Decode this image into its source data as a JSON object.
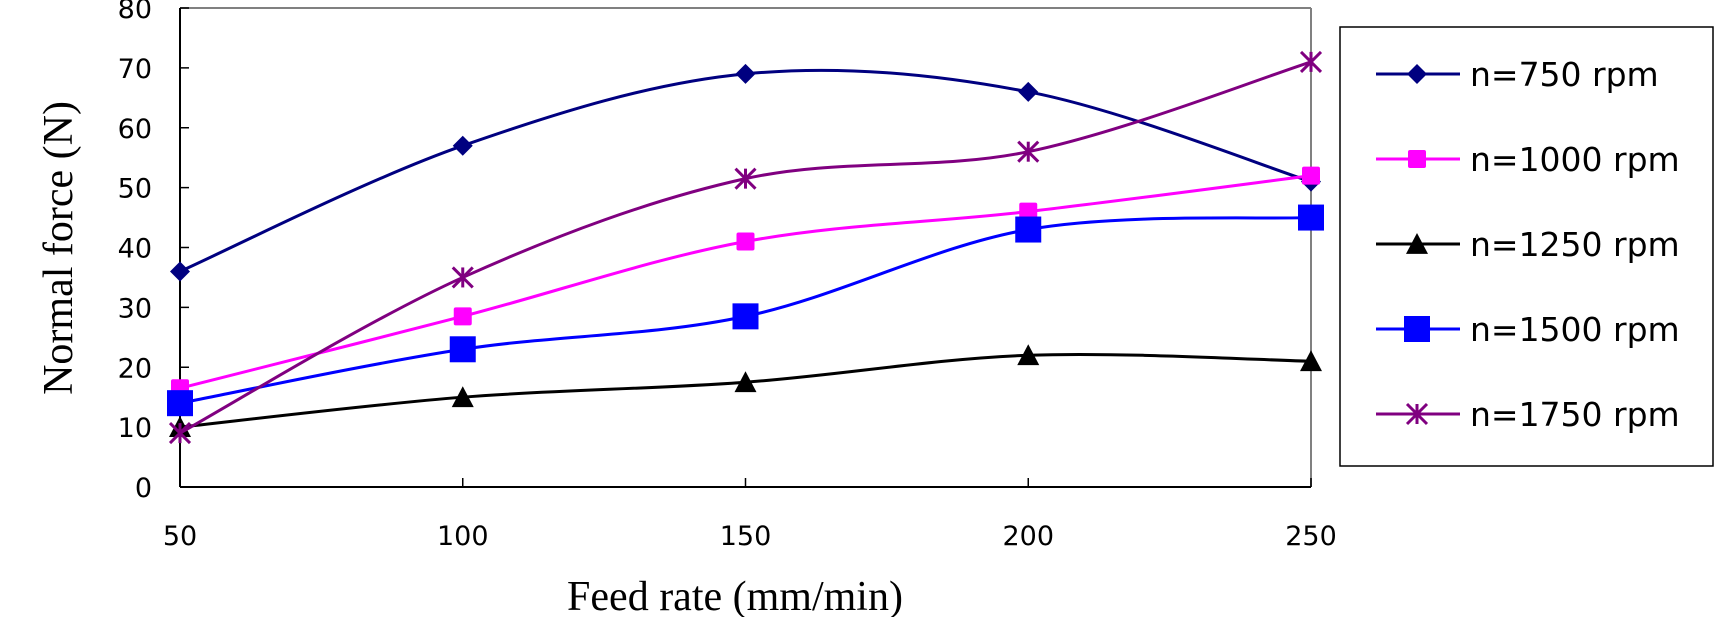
{
  "chart_data": {
    "type": "line",
    "title": "",
    "xlabel": "Feed rate (mm/min)",
    "ylabel": "Normal force (N)",
    "x": [
      50,
      100,
      150,
      200,
      250
    ],
    "xlim": [
      50,
      250
    ],
    "ylim": [
      0,
      80
    ],
    "x_ticks": [
      "50",
      "100",
      "150",
      "200",
      "250"
    ],
    "y_ticks": [
      "0",
      "10",
      "20",
      "30",
      "40",
      "50",
      "60",
      "70",
      "80"
    ],
    "grid": false,
    "smoothed": true,
    "legend_position": "right",
    "series": [
      {
        "name": "n=750 rpm",
        "marker": "diamond",
        "color": "#000080",
        "values": [
          36,
          57,
          69,
          66,
          51
        ]
      },
      {
        "name": "n=1000 rpm",
        "marker": "square",
        "color": "#FF00FF",
        "values": [
          16.5,
          28.5,
          41,
          46,
          52
        ]
      },
      {
        "name": "n=1250 rpm",
        "marker": "triangle",
        "color": "#000000",
        "values": [
          10,
          15,
          17.5,
          22,
          21
        ]
      },
      {
        "name": "n=1500 rpm",
        "marker": "big-square",
        "color": "#0000FF",
        "values": [
          14,
          23,
          28.5,
          43,
          45
        ]
      },
      {
        "name": "n=1750 rpm",
        "marker": "star",
        "color": "#800080",
        "values": [
          9,
          35,
          51.5,
          56,
          71
        ]
      }
    ]
  }
}
